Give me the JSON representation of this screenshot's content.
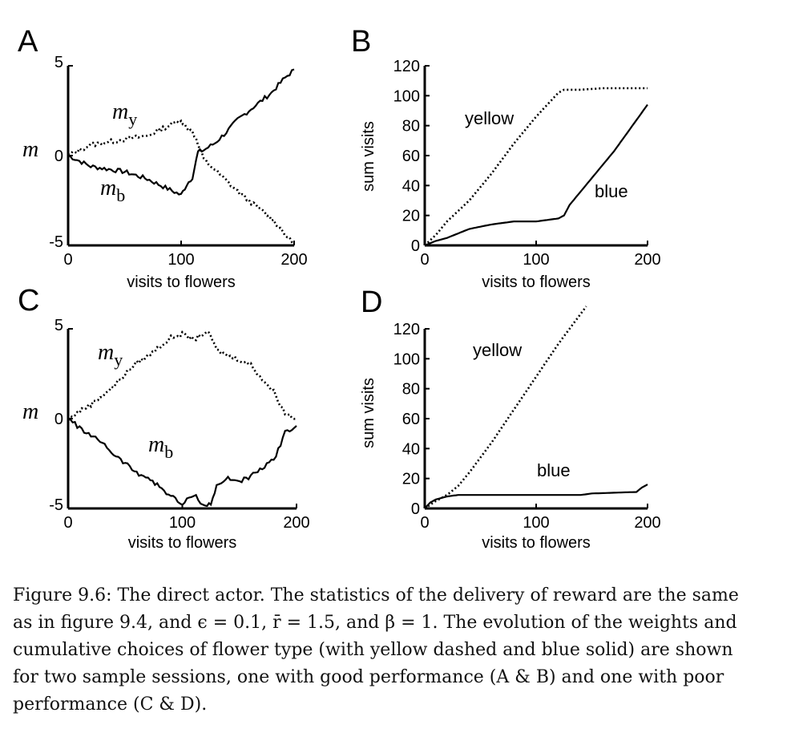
{
  "chart_data": [
    {
      "panel": "A",
      "type": "line",
      "ylabel": "m",
      "xlabel": "visits to flowers",
      "xlim": [
        0,
        200
      ],
      "ylim": [
        -5,
        5
      ],
      "x_ticks": [
        "0",
        "100",
        "200"
      ],
      "y_ticks": [
        "5",
        "0",
        "-5"
      ],
      "series": [
        {
          "name": "m",
          "subscript": "y",
          "style": "dotted",
          "x": [
            0,
            10,
            20,
            30,
            40,
            50,
            60,
            70,
            80,
            90,
            100,
            105,
            110,
            115,
            120,
            130,
            140,
            150,
            160,
            170,
            180,
            190,
            200
          ],
          "y": [
            0,
            0.3,
            0.6,
            0.7,
            0.8,
            0.9,
            1.0,
            1.1,
            1.4,
            1.7,
            2.0,
            1.5,
            1.4,
            0.6,
            -0.2,
            -0.8,
            -1.4,
            -2.0,
            -2.5,
            -3.0,
            -3.5,
            -4.2,
            -5.0
          ]
        },
        {
          "name": "m",
          "subscript": "b",
          "style": "solid",
          "x": [
            0,
            10,
            20,
            30,
            40,
            50,
            60,
            70,
            80,
            90,
            100,
            105,
            110,
            115,
            120,
            130,
            140,
            150,
            160,
            170,
            180,
            190,
            200
          ],
          "y": [
            0,
            -0.3,
            -0.6,
            -0.7,
            -0.8,
            -0.9,
            -1.1,
            -1.3,
            -1.6,
            -1.9,
            -2.2,
            -1.6,
            -1.2,
            0.2,
            0.3,
            0.7,
            1.3,
            2.0,
            2.5,
            3.0,
            3.5,
            4.2,
            4.8
          ]
        }
      ]
    },
    {
      "panel": "B",
      "type": "line",
      "ylabel": "sum visits",
      "xlabel": "visits to flowers",
      "xlim": [
        0,
        200
      ],
      "ylim": [
        0,
        120
      ],
      "x_ticks": [
        "0",
        "100",
        "200"
      ],
      "y_ticks": [
        "0",
        "20",
        "40",
        "60",
        "80",
        "100",
        "120"
      ],
      "series": [
        {
          "name": "yellow",
          "style": "dotted",
          "x": [
            0,
            10,
            20,
            40,
            60,
            80,
            100,
            120,
            125,
            140,
            160,
            180,
            200
          ],
          "y": [
            0,
            7,
            16,
            30,
            48,
            68,
            86,
            102,
            104,
            104,
            105,
            105,
            105
          ]
        },
        {
          "name": "blue",
          "style": "solid",
          "x": [
            0,
            10,
            20,
            30,
            40,
            60,
            80,
            100,
            110,
            120,
            125,
            130,
            150,
            170,
            200
          ],
          "y": [
            0,
            3,
            5,
            8,
            11,
            14,
            16,
            16,
            17,
            18,
            20,
            27,
            45,
            63,
            94
          ]
        }
      ]
    },
    {
      "panel": "C",
      "type": "line",
      "ylabel": "m",
      "xlabel": "visits to flowers",
      "xlim": [
        0,
        200
      ],
      "ylim": [
        -5,
        5
      ],
      "x_ticks": [
        "0",
        "100",
        "200"
      ],
      "y_ticks": [
        "5",
        "0",
        "-5"
      ],
      "series": [
        {
          "name": "m",
          "subscript": "y",
          "style": "dotted",
          "x": [
            0,
            10,
            20,
            30,
            40,
            50,
            60,
            70,
            80,
            90,
            100,
            110,
            120,
            125,
            130,
            140,
            150,
            160,
            170,
            180,
            190,
            200
          ],
          "y": [
            0,
            0.4,
            0.8,
            1.3,
            1.8,
            2.5,
            3.1,
            3.5,
            4.0,
            4.5,
            4.7,
            4.4,
            4.8,
            4.6,
            3.8,
            3.5,
            3.3,
            3.0,
            2.2,
            1.5,
            0.3,
            0.0
          ]
        },
        {
          "name": "m",
          "subscript": "b",
          "style": "solid",
          "x": [
            0,
            10,
            20,
            30,
            40,
            50,
            60,
            70,
            80,
            90,
            100,
            110,
            120,
            125,
            130,
            140,
            150,
            160,
            170,
            180,
            190,
            200
          ],
          "y": [
            0,
            -0.5,
            -1.0,
            -1.3,
            -2.0,
            -2.5,
            -3.0,
            -3.3,
            -3.8,
            -4.3,
            -4.8,
            -4.2,
            -4.9,
            -4.7,
            -3.8,
            -3.3,
            -3.5,
            -3.2,
            -2.8,
            -2.3,
            -0.8,
            -0.4
          ]
        }
      ]
    },
    {
      "panel": "D",
      "type": "line",
      "ylabel": "sum visits",
      "xlabel": "visits to flowers",
      "xlim": [
        0,
        200
      ],
      "ylim": [
        0,
        120
      ],
      "x_ticks": [
        "0",
        "100",
        "200"
      ],
      "y_ticks": [
        "0",
        "20",
        "40",
        "60",
        "80",
        "100",
        "120"
      ],
      "series": [
        {
          "name": "yellow",
          "style": "dotted",
          "x": [
            0,
            10,
            20,
            30,
            40,
            60,
            80,
            100,
            120,
            145
          ],
          "y": [
            0,
            5,
            9,
            15,
            24,
            44,
            66,
            88,
            110,
            135
          ]
        },
        {
          "name": "blue",
          "style": "solid",
          "x": [
            0,
            5,
            10,
            20,
            30,
            60,
            100,
            140,
            150,
            190,
            195,
            200
          ],
          "y": [
            0,
            4,
            6,
            8,
            9,
            9,
            9,
            9,
            10,
            11,
            14,
            16
          ]
        }
      ]
    }
  ],
  "caption": {
    "lines": [
      "Figure 9.6: The direct actor. The statistics of the delivery of reward are the same",
      "as in figure 9.4, and ϵ = 0.1, r̄ = 1.5, and β = 1. The evolution of the weights and",
      "cumulative choices of flower type (with yellow dashed and blue solid) are shown",
      "for two sample sessions, one with good performance (A & B) and one with poor",
      "performance (C & D)."
    ]
  }
}
